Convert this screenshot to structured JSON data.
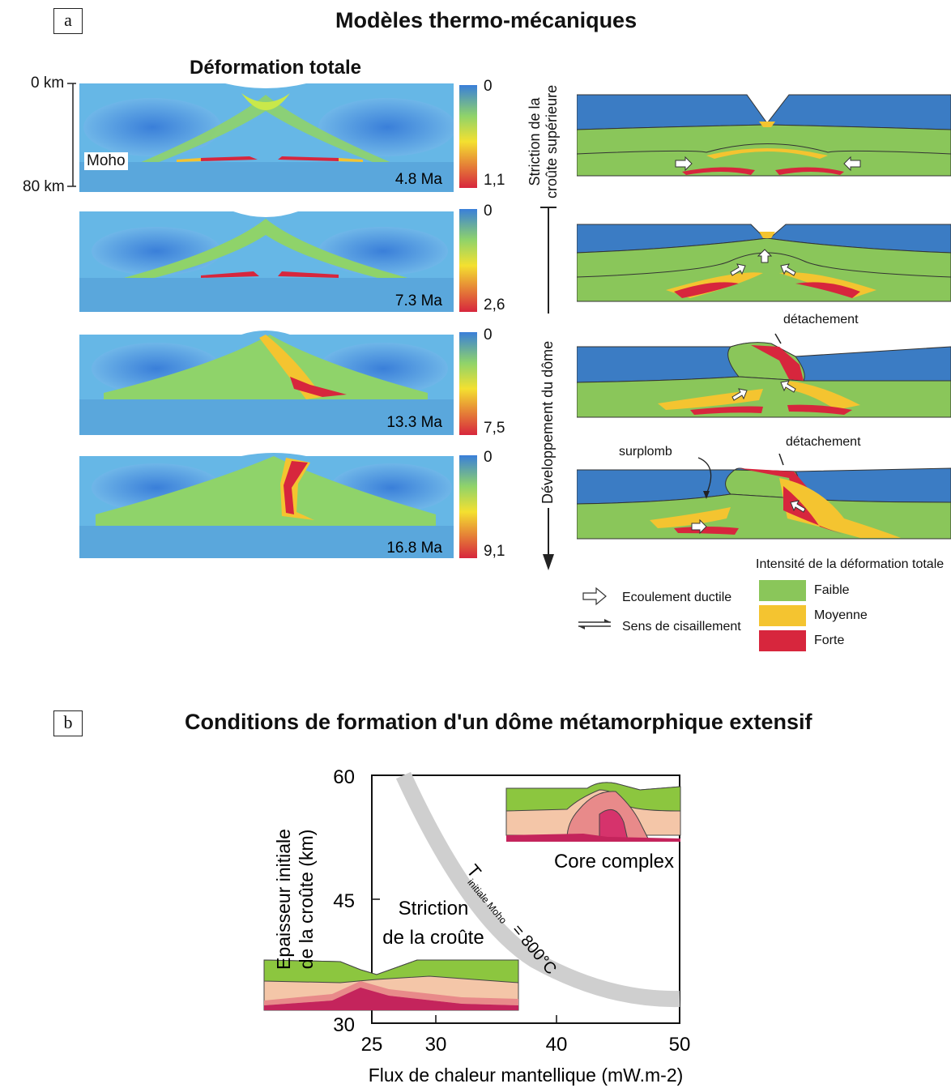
{
  "panel_a": {
    "letter": "a",
    "title": "Modèles thermo-mécaniques",
    "left_title": "Déformation totale",
    "depth_top": "0 km",
    "depth_bottom": "80 km",
    "moho_label": "Moho",
    "scale_min": "0",
    "models": [
      {
        "age": "4.8 Ma",
        "scale_max": "1,1"
      },
      {
        "age": "7.3 Ma",
        "scale_max": "2,6"
      },
      {
        "age": "13.3 Ma",
        "scale_max": "7,5"
      },
      {
        "age": "16.8 Ma",
        "scale_max": "9,1"
      }
    ],
    "stage1_label_line1": "Striction de la",
    "stage1_label_line2": "croûte supérieure",
    "stage2_label": "Développement du dôme",
    "detachement_label": "détachement",
    "surplomb_label": "surplomb",
    "legend": {
      "title": "Intensité de la déformation totale",
      "flow_label": "Ecoulement ductile",
      "shear_label": "Sens de cisaillement",
      "items": [
        {
          "label": "Faible",
          "color": "#8ac65a"
        },
        {
          "label": "Moyenne",
          "color": "#f4c430"
        },
        {
          "label": "Forte",
          "color": "#d7263d"
        }
      ]
    },
    "colors": {
      "upper_crust": "#3b7cc4",
      "lower_crust": "#8ac65a"
    }
  },
  "panel_b": {
    "letter": "b",
    "title": "Conditions de formation d'un dôme métamorphique extensif",
    "ylabel_line1": "Epaisseur initiale",
    "ylabel_line2": "de la croûte (km)",
    "xlabel": "Flux de chaleur mantellique (mW.m-2)",
    "y_ticks": [
      "60",
      "45",
      "30"
    ],
    "x_ticks": [
      "25",
      "30",
      "40",
      "50"
    ],
    "core_complex_label": "Core complex",
    "striction_line1": "Striction",
    "striction_line2": "de la croûte",
    "curve_T": "T",
    "curve_sub": "initiale Moho",
    "curve_eq": "= 800°C"
  }
}
